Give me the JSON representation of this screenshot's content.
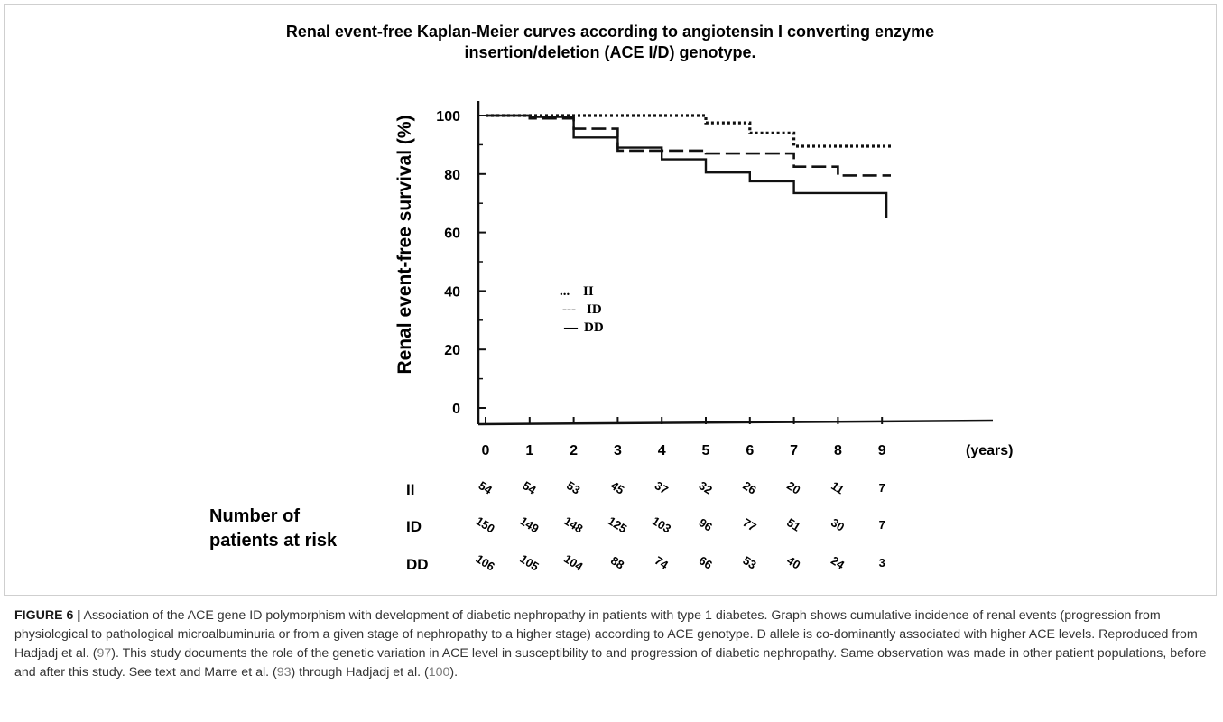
{
  "chart_data": {
    "type": "line",
    "step": true,
    "title_lines": [
      "Renal event-free Kaplan-Meier curves according to angiotensin I converting enzyme",
      "insertion/deletion (ACE I/D) genotype."
    ],
    "xlabel": "(years)",
    "ylabel": "Renal event-free survival (%)",
    "xlim": [
      0,
      10
    ],
    "ylim": [
      0,
      105
    ],
    "x_ticks": [
      0,
      1,
      2,
      3,
      4,
      5,
      6,
      7,
      8,
      9
    ],
    "y_ticks": [
      0,
      20,
      40,
      60,
      80,
      100
    ],
    "grid": false,
    "legend": {
      "placement": "center-left",
      "items": [
        {
          "series": "II",
          "marker": "...",
          "label": "II"
        },
        {
          "series": "ID",
          "marker": "---",
          "label": "ID"
        },
        {
          "series": "DD",
          "marker": "—",
          "label": "DD"
        }
      ]
    },
    "series": [
      {
        "name": "II",
        "style": "dotted",
        "x": [
          0,
          1.0,
          1.0,
          5.0,
          5.0,
          6.0,
          6.0,
          7.0,
          7.0,
          9.2
        ],
        "y": [
          100,
          100,
          100,
          100,
          97.5,
          97.5,
          94,
          94,
          89.5,
          89.5
        ]
      },
      {
        "name": "ID",
        "style": "dashed",
        "x": [
          0,
          1.0,
          1.0,
          2.0,
          2.0,
          3.0,
          3.0,
          4.0,
          4.0,
          5.0,
          5.0,
          7.0,
          7.0,
          8.0,
          8.0,
          9.2
        ],
        "y": [
          100,
          100,
          99,
          99,
          95.5,
          95.5,
          88,
          88,
          88,
          88,
          87,
          87,
          82.5,
          82.5,
          79.5,
          79.5
        ]
      },
      {
        "name": "DD",
        "style": "solid",
        "x": [
          0,
          1.0,
          1.0,
          2.0,
          2.0,
          3.0,
          3.0,
          4.0,
          4.0,
          5.0,
          5.0,
          6.0,
          6.0,
          7.0,
          7.0,
          9.1,
          9.1
        ],
        "y": [
          100,
          100,
          99.5,
          99.5,
          92.5,
          92.5,
          89,
          89,
          85,
          85,
          80.5,
          80.5,
          77.5,
          77.5,
          73.5,
          73.5,
          65
        ]
      }
    ]
  },
  "risk_table": {
    "title_lines": [
      "Number of",
      "patients at risk"
    ],
    "rows": [
      {
        "group": "II",
        "values": [
          "54",
          "54",
          "53",
          "45",
          "37",
          "32",
          "26",
          "20",
          "11",
          "7"
        ]
      },
      {
        "group": "ID",
        "values": [
          "150",
          "149",
          "148",
          "125",
          "103",
          "96",
          "77",
          "51",
          "30",
          "7"
        ]
      },
      {
        "group": "DD",
        "values": [
          "106",
          "105",
          "104",
          "88",
          "74",
          "66",
          "53",
          "40",
          "24",
          "3"
        ]
      }
    ]
  },
  "caption": {
    "label": "FIGURE 6 |",
    "text_1": " Association of the ACE gene ID polymorphism with development of diabetic nephropathy in patients with type 1 diabetes. Graph shows cumulative incidence of renal events (progression from physiological to pathological microalbuminuria or from a given stage of nephropathy to a higher stage) according to ACE genotype. D allele is co-dominantly associated with higher ACE levels. Reproduced from Hadjadj et al. (",
    "ref_1": "97",
    "text_2": "). This study documents the role of the genetic variation in ACE level in susceptibility to and progression of diabetic nephropathy. Same observation was made in other patient populations, before and after this study. See text and Marre et al. (",
    "ref_2": "93",
    "text_3": ") through Hadjadj et al. (",
    "ref_3": "100",
    "text_4": ")."
  }
}
